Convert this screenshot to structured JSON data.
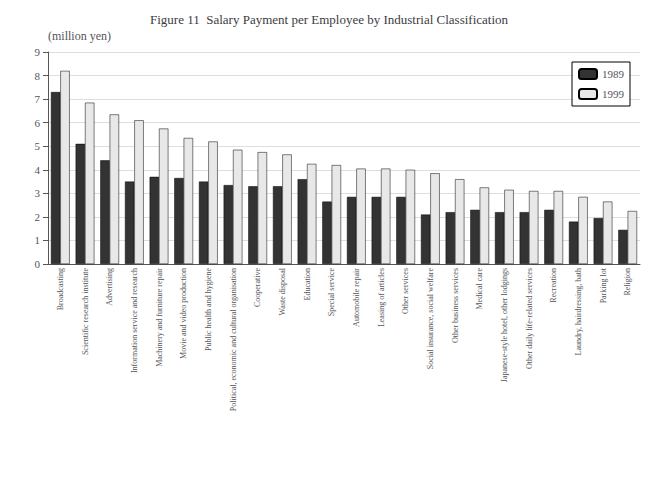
{
  "chart_data": {
    "type": "bar",
    "title": "Figure 11  Salary Payment per Employee by Industrial Classification",
    "ylabel": "(million yen)",
    "categories": [
      "Broadcasting",
      "Scientific research institute",
      "Advertising",
      "Information service and research",
      "Machinery and furniture repair",
      "Movie and video production",
      "Public health and hygiene",
      "Political, economic and cultural organisation",
      "Cooperative",
      "Waste disposal",
      "Education",
      "Special service",
      "Automobile repair",
      "Leasing of articles",
      "Other services",
      "Social insurance, social welfare",
      "Other business services",
      "Medical care",
      "Japanese-style hotel, other lodgings",
      "Other daily life-related services",
      "Recreation",
      "Laundry, hairdressing, bath",
      "Parking lot",
      "Religion"
    ],
    "series": [
      {
        "name": "1989",
        "color": "#333333",
        "values": [
          7.3,
          5.1,
          4.4,
          3.5,
          3.7,
          3.65,
          3.5,
          3.35,
          3.3,
          3.3,
          3.6,
          2.65,
          2.85,
          2.85,
          2.85,
          2.1,
          2.2,
          2.3,
          2.2,
          2.2,
          2.3,
          1.8,
          1.95,
          1.45
        ]
      },
      {
        "name": "1999",
        "color": "#e8e8e8",
        "values": [
          8.2,
          6.85,
          6.35,
          6.1,
          5.75,
          5.35,
          5.2,
          4.85,
          4.75,
          4.65,
          4.25,
          4.2,
          4.05,
          4.05,
          4.0,
          3.85,
          3.6,
          3.25,
          3.15,
          3.1,
          3.1,
          2.85,
          2.65,
          2.25
        ]
      }
    ],
    "ylim": [
      0,
      9
    ],
    "yticks": [
      0,
      1,
      2,
      3,
      4,
      5,
      6,
      7,
      8,
      9
    ],
    "grid": true,
    "legend": "upper right"
  }
}
